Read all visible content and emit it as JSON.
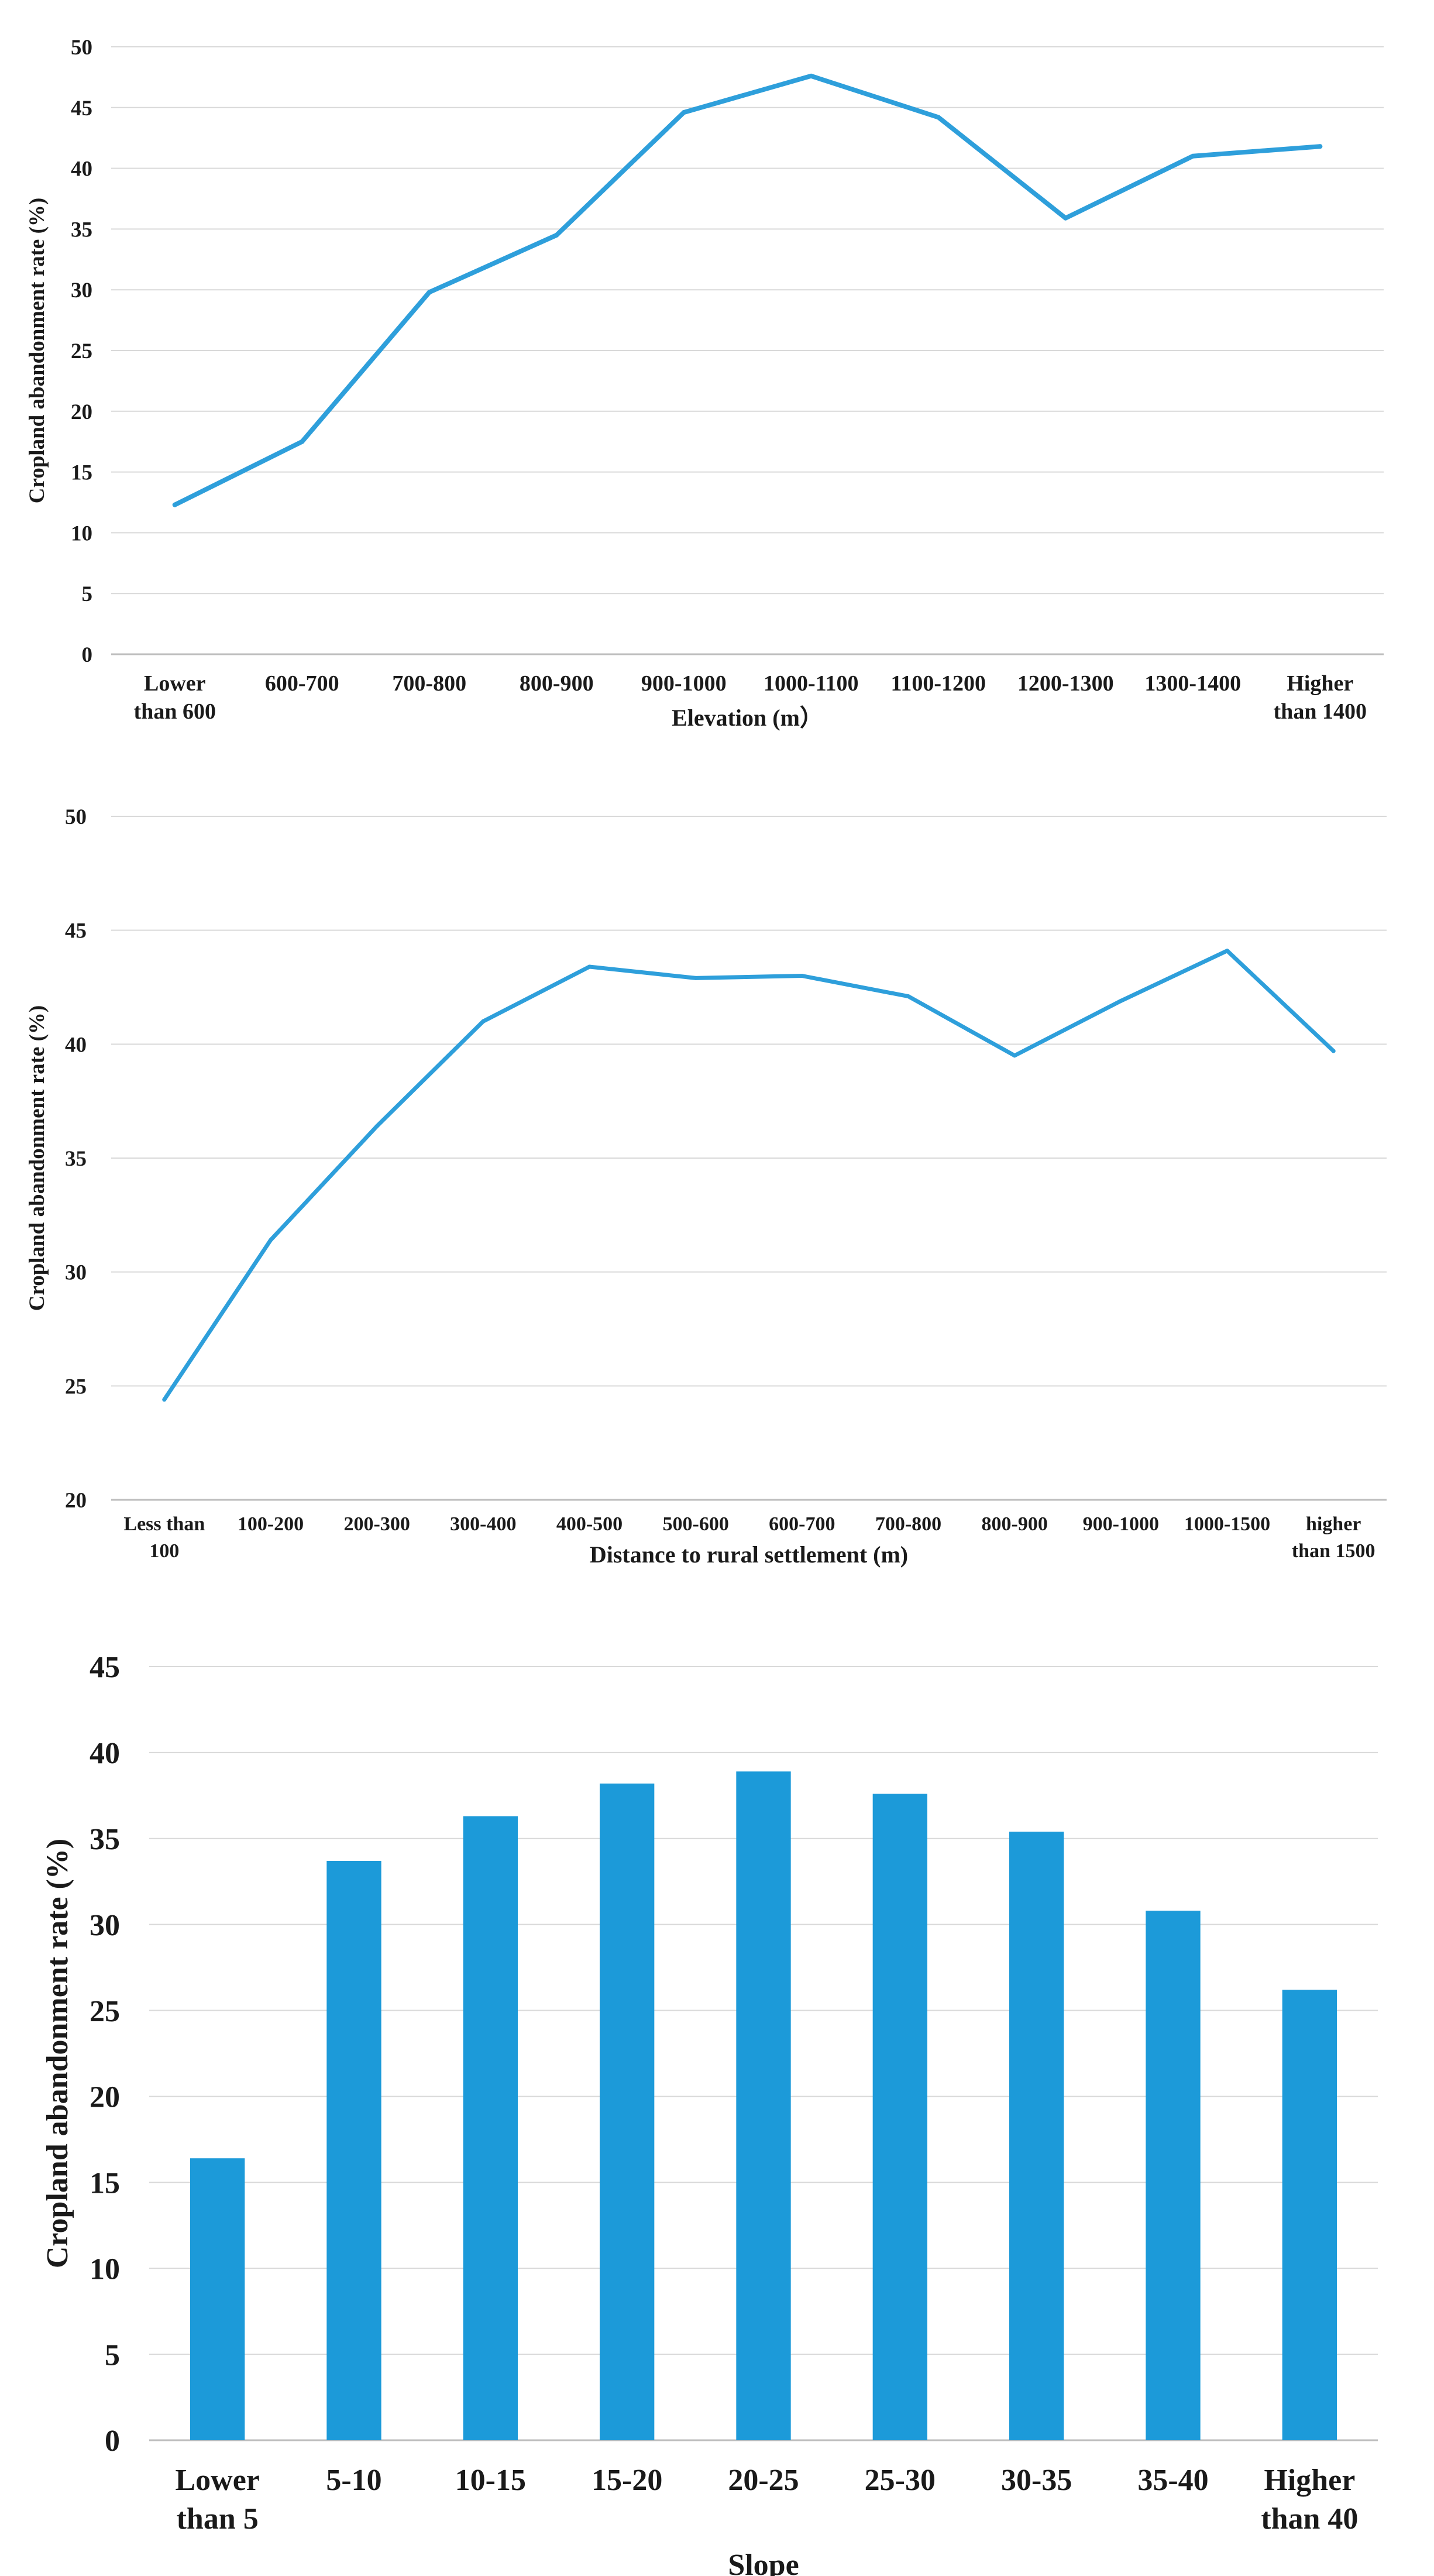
{
  "chart_data": [
    {
      "type": "line",
      "title": "",
      "xlabel": "Elevation (m）",
      "ylabel": "Cropland abandonment rate (%)",
      "categories": [
        [
          "Lower",
          "than 600"
        ],
        [
          "600-700"
        ],
        [
          "700-800"
        ],
        [
          "800-900"
        ],
        [
          "900-1000"
        ],
        [
          "1000-1100"
        ],
        [
          "1100-1200"
        ],
        [
          "1200-1300"
        ],
        [
          "1300-1400"
        ],
        [
          "Higher",
          "than 1400"
        ]
      ],
      "values": [
        12.3,
        17.5,
        29.8,
        34.5,
        44.6,
        47.6,
        44.2,
        35.9,
        41.0,
        41.8
      ],
      "ylim": [
        0,
        50
      ],
      "yticks": [
        0,
        5,
        10,
        15,
        20,
        25,
        30,
        35,
        40,
        45,
        50
      ],
      "grid": true,
      "color": "#2e9fdb"
    },
    {
      "type": "line",
      "title": "",
      "xlabel": "Distance to rural settlement (m)",
      "ylabel": "Cropland abandonment rate (%)",
      "categories": [
        [
          "Less than",
          "100"
        ],
        [
          "100-200"
        ],
        [
          "200-300"
        ],
        [
          "300-400"
        ],
        [
          "400-500"
        ],
        [
          "500-600"
        ],
        [
          "600-700"
        ],
        [
          "700-800"
        ],
        [
          "800-900"
        ],
        [
          "900-1000"
        ],
        [
          "1000-1500"
        ],
        [
          "higher",
          "than 1500"
        ]
      ],
      "values": [
        24.4,
        31.4,
        36.4,
        41.0,
        43.4,
        42.9,
        43.0,
        42.1,
        39.5,
        41.9,
        44.1,
        39.7
      ],
      "ylim": [
        20,
        50
      ],
      "yticks": [
        20,
        25,
        30,
        35,
        40,
        45,
        50
      ],
      "grid": true,
      "color": "#2e9fdb"
    },
    {
      "type": "bar",
      "title": "",
      "xlabel": "Slope",
      "ylabel": "Cropland abandonment rate (%)",
      "categories": [
        [
          "Lower",
          "than 5"
        ],
        [
          "5-10"
        ],
        [
          "10-15"
        ],
        [
          "15-20"
        ],
        [
          "20-25"
        ],
        [
          "25-30"
        ],
        [
          "30-35"
        ],
        [
          "35-40"
        ],
        [
          "Higher",
          "than 40"
        ]
      ],
      "values": [
        16.4,
        33.7,
        36.3,
        38.2,
        38.9,
        37.6,
        35.4,
        30.8,
        26.2
      ],
      "ylim": [
        0,
        45
      ],
      "yticks": [
        0,
        5,
        10,
        15,
        20,
        25,
        30,
        35,
        40,
        45
      ],
      "grid": true,
      "color": "#1c9ad9"
    }
  ]
}
